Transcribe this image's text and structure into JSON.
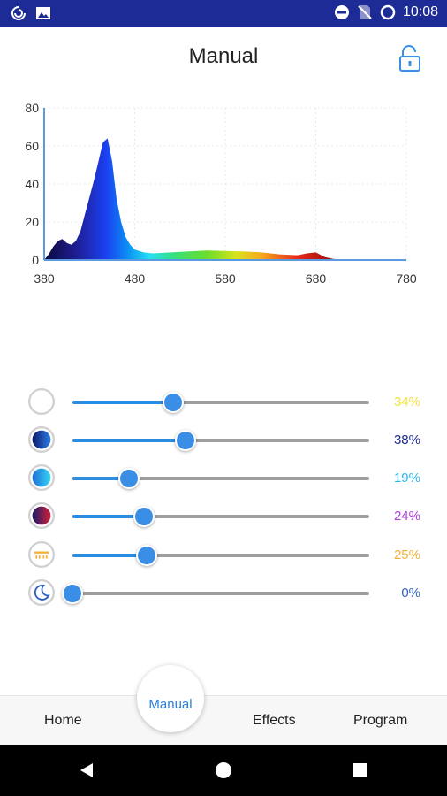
{
  "status_bar": {
    "time": "10:08",
    "left_icons": [
      "sync-icon",
      "image-icon"
    ],
    "right_icons": [
      "do-not-disturb-icon",
      "no-sim-icon",
      "circle-icon"
    ],
    "color": "#1d2b96"
  },
  "header": {
    "title": "Manual",
    "lock_icon": "unlock-icon"
  },
  "chart_data": {
    "type": "area",
    "title": "",
    "xlabel": "",
    "ylabel": "",
    "xlim": [
      380,
      780
    ],
    "ylim": [
      0,
      80
    ],
    "x_ticks": [
      "380",
      "480",
      "580",
      "680",
      "780"
    ],
    "y_ticks": [
      "0",
      "20",
      "40",
      "60",
      "80"
    ],
    "grid": true,
    "x": [
      380,
      385,
      390,
      395,
      400,
      405,
      410,
      415,
      420,
      425,
      430,
      435,
      440,
      445,
      450,
      455,
      460,
      465,
      470,
      475,
      480,
      490,
      500,
      520,
      540,
      560,
      580,
      600,
      620,
      640,
      660,
      670,
      680,
      690,
      700,
      720,
      740,
      760,
      780
    ],
    "y": [
      0,
      3,
      7,
      10,
      11,
      9,
      8,
      10,
      15,
      24,
      33,
      42,
      52,
      62,
      64,
      52,
      32,
      20,
      12,
      8,
      5.5,
      4,
      3.5,
      4,
      4.5,
      5,
      4.8,
      4.5,
      4,
      3,
      2.5,
      3.5,
      4,
      1.5,
      0.5,
      0.3,
      0.2,
      0.1,
      0
    ]
  },
  "sliders": [
    {
      "name": "white",
      "icon": "white-channel-icon",
      "value": 34,
      "label": "34%",
      "color": "#f2e43a"
    },
    {
      "name": "royal-blue",
      "icon": "royal-blue-channel-icon",
      "value": 38,
      "label": "38%",
      "color": "#1d2a8f"
    },
    {
      "name": "cyan",
      "icon": "cyan-channel-icon",
      "value": 19,
      "label": "19%",
      "color": "#2bb5ea"
    },
    {
      "name": "violet",
      "icon": "violet-channel-icon",
      "value": 24,
      "label": "24%",
      "color": "#b040d8"
    },
    {
      "name": "warm",
      "icon": "warm-channel-icon",
      "value": 25,
      "label": "25%",
      "color": "#f4b13a"
    },
    {
      "name": "moon",
      "icon": "moon-icon",
      "value": 0,
      "label": "0%",
      "color": "#2f5fc0"
    }
  ],
  "bottom_nav": {
    "home": "Home",
    "manual": "Manual",
    "effects": "Effects",
    "program": "Program"
  }
}
